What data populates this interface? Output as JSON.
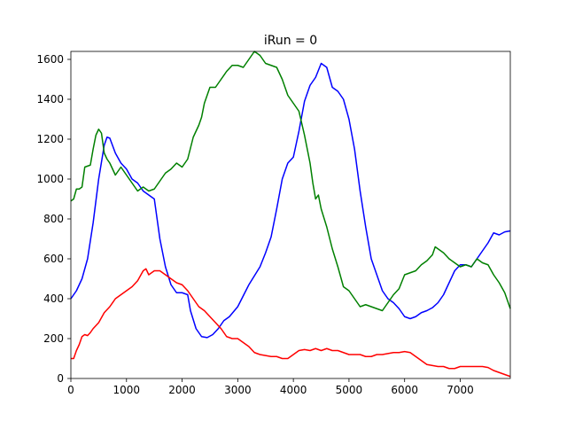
{
  "chart_data": {
    "type": "line",
    "title": "iRun = 0",
    "xlabel": "",
    "ylabel": "",
    "xlim": [
      0,
      7900
    ],
    "ylim": [
      0,
      1640
    ],
    "xticks": [
      0,
      1000,
      2000,
      3000,
      4000,
      5000,
      6000,
      7000
    ],
    "yticks": [
      0,
      200,
      400,
      600,
      800,
      1000,
      1200,
      1400,
      1600
    ],
    "grid": false,
    "legend": "none",
    "series": [
      {
        "color": "#0000ff",
        "points": [
          [
            0,
            400
          ],
          [
            100,
            440
          ],
          [
            200,
            500
          ],
          [
            300,
            600
          ],
          [
            400,
            780
          ],
          [
            500,
            1000
          ],
          [
            600,
            1170
          ],
          [
            650,
            1210
          ],
          [
            700,
            1205
          ],
          [
            800,
            1130
          ],
          [
            900,
            1080
          ],
          [
            1000,
            1050
          ],
          [
            1100,
            1000
          ],
          [
            1200,
            980
          ],
          [
            1300,
            940
          ],
          [
            1400,
            920
          ],
          [
            1500,
            900
          ],
          [
            1600,
            700
          ],
          [
            1700,
            560
          ],
          [
            1800,
            470
          ],
          [
            1900,
            430
          ],
          [
            2000,
            430
          ],
          [
            2100,
            420
          ],
          [
            2150,
            340
          ],
          [
            2250,
            250
          ],
          [
            2350,
            210
          ],
          [
            2450,
            205
          ],
          [
            2550,
            220
          ],
          [
            2650,
            250
          ],
          [
            2750,
            290
          ],
          [
            2850,
            310
          ],
          [
            3000,
            360
          ],
          [
            3200,
            470
          ],
          [
            3400,
            560
          ],
          [
            3500,
            630
          ],
          [
            3600,
            710
          ],
          [
            3700,
            850
          ],
          [
            3800,
            1000
          ],
          [
            3900,
            1080
          ],
          [
            4000,
            1110
          ],
          [
            4100,
            1240
          ],
          [
            4200,
            1390
          ],
          [
            4300,
            1470
          ],
          [
            4400,
            1510
          ],
          [
            4500,
            1580
          ],
          [
            4600,
            1560
          ],
          [
            4700,
            1460
          ],
          [
            4800,
            1440
          ],
          [
            4900,
            1400
          ],
          [
            5000,
            1300
          ],
          [
            5100,
            1150
          ],
          [
            5200,
            940
          ],
          [
            5300,
            760
          ],
          [
            5400,
            600
          ],
          [
            5500,
            520
          ],
          [
            5600,
            440
          ],
          [
            5700,
            400
          ],
          [
            5800,
            380
          ],
          [
            5900,
            350
          ],
          [
            6000,
            310
          ],
          [
            6100,
            300
          ],
          [
            6200,
            310
          ],
          [
            6300,
            330
          ],
          [
            6400,
            340
          ],
          [
            6500,
            355
          ],
          [
            6600,
            380
          ],
          [
            6700,
            420
          ],
          [
            6800,
            480
          ],
          [
            6900,
            540
          ],
          [
            7000,
            570
          ],
          [
            7100,
            570
          ],
          [
            7200,
            560
          ],
          [
            7300,
            600
          ],
          [
            7400,
            640
          ],
          [
            7500,
            680
          ],
          [
            7600,
            730
          ],
          [
            7700,
            720
          ],
          [
            7800,
            735
          ],
          [
            7900,
            740
          ]
        ]
      },
      {
        "color": "#008000",
        "points": [
          [
            0,
            890
          ],
          [
            50,
            900
          ],
          [
            100,
            950
          ],
          [
            150,
            950
          ],
          [
            200,
            960
          ],
          [
            250,
            1060
          ],
          [
            350,
            1070
          ],
          [
            400,
            1150
          ],
          [
            450,
            1220
          ],
          [
            500,
            1250
          ],
          [
            550,
            1230
          ],
          [
            600,
            1130
          ],
          [
            650,
            1100
          ],
          [
            700,
            1080
          ],
          [
            750,
            1050
          ],
          [
            800,
            1020
          ],
          [
            900,
            1060
          ],
          [
            1000,
            1020
          ],
          [
            1100,
            980
          ],
          [
            1150,
            960
          ],
          [
            1200,
            940
          ],
          [
            1300,
            960
          ],
          [
            1400,
            940
          ],
          [
            1500,
            950
          ],
          [
            1600,
            990
          ],
          [
            1700,
            1030
          ],
          [
            1800,
            1050
          ],
          [
            1900,
            1080
          ],
          [
            2000,
            1060
          ],
          [
            2100,
            1100
          ],
          [
            2200,
            1210
          ],
          [
            2300,
            1270
          ],
          [
            2350,
            1310
          ],
          [
            2400,
            1380
          ],
          [
            2500,
            1460
          ],
          [
            2600,
            1460
          ],
          [
            2700,
            1500
          ],
          [
            2800,
            1540
          ],
          [
            2900,
            1570
          ],
          [
            3000,
            1570
          ],
          [
            3100,
            1560
          ],
          [
            3200,
            1600
          ],
          [
            3300,
            1640
          ],
          [
            3400,
            1620
          ],
          [
            3500,
            1580
          ],
          [
            3600,
            1570
          ],
          [
            3700,
            1560
          ],
          [
            3800,
            1500
          ],
          [
            3900,
            1420
          ],
          [
            4000,
            1380
          ],
          [
            4100,
            1340
          ],
          [
            4200,
            1220
          ],
          [
            4300,
            1080
          ],
          [
            4350,
            980
          ],
          [
            4400,
            900
          ],
          [
            4450,
            920
          ],
          [
            4500,
            850
          ],
          [
            4600,
            760
          ],
          [
            4700,
            650
          ],
          [
            4800,
            560
          ],
          [
            4900,
            460
          ],
          [
            5000,
            440
          ],
          [
            5100,
            400
          ],
          [
            5200,
            360
          ],
          [
            5300,
            370
          ],
          [
            5400,
            360
          ],
          [
            5500,
            350
          ],
          [
            5600,
            340
          ],
          [
            5700,
            380
          ],
          [
            5800,
            420
          ],
          [
            5900,
            450
          ],
          [
            6000,
            520
          ],
          [
            6100,
            530
          ],
          [
            6200,
            540
          ],
          [
            6300,
            570
          ],
          [
            6400,
            590
          ],
          [
            6500,
            620
          ],
          [
            6550,
            660
          ],
          [
            6600,
            650
          ],
          [
            6700,
            630
          ],
          [
            6800,
            600
          ],
          [
            6900,
            580
          ],
          [
            7000,
            560
          ],
          [
            7100,
            570
          ],
          [
            7200,
            560
          ],
          [
            7300,
            600
          ],
          [
            7400,
            580
          ],
          [
            7500,
            570
          ],
          [
            7600,
            520
          ],
          [
            7700,
            480
          ],
          [
            7800,
            430
          ],
          [
            7900,
            350
          ]
        ]
      },
      {
        "color": "#ff0000",
        "points": [
          [
            0,
            100
          ],
          [
            50,
            100
          ],
          [
            100,
            140
          ],
          [
            150,
            170
          ],
          [
            200,
            210
          ],
          [
            250,
            220
          ],
          [
            300,
            215
          ],
          [
            350,
            230
          ],
          [
            400,
            250
          ],
          [
            500,
            280
          ],
          [
            600,
            330
          ],
          [
            700,
            360
          ],
          [
            800,
            400
          ],
          [
            900,
            420
          ],
          [
            1000,
            440
          ],
          [
            1100,
            460
          ],
          [
            1200,
            490
          ],
          [
            1300,
            540
          ],
          [
            1350,
            550
          ],
          [
            1400,
            520
          ],
          [
            1500,
            540
          ],
          [
            1600,
            540
          ],
          [
            1700,
            520
          ],
          [
            1800,
            500
          ],
          [
            1900,
            480
          ],
          [
            2000,
            470
          ],
          [
            2100,
            440
          ],
          [
            2200,
            400
          ],
          [
            2300,
            360
          ],
          [
            2400,
            340
          ],
          [
            2500,
            310
          ],
          [
            2600,
            280
          ],
          [
            2700,
            250
          ],
          [
            2800,
            210
          ],
          [
            2900,
            200
          ],
          [
            3000,
            200
          ],
          [
            3100,
            180
          ],
          [
            3200,
            160
          ],
          [
            3300,
            130
          ],
          [
            3400,
            120
          ],
          [
            3500,
            115
          ],
          [
            3600,
            110
          ],
          [
            3700,
            110
          ],
          [
            3800,
            100
          ],
          [
            3900,
            100
          ],
          [
            4000,
            120
          ],
          [
            4100,
            140
          ],
          [
            4200,
            145
          ],
          [
            4300,
            140
          ],
          [
            4400,
            150
          ],
          [
            4500,
            140
          ],
          [
            4600,
            150
          ],
          [
            4700,
            140
          ],
          [
            4800,
            140
          ],
          [
            4900,
            130
          ],
          [
            5000,
            120
          ],
          [
            5100,
            120
          ],
          [
            5200,
            120
          ],
          [
            5300,
            110
          ],
          [
            5400,
            110
          ],
          [
            5500,
            120
          ],
          [
            5600,
            120
          ],
          [
            5700,
            125
          ],
          [
            5800,
            130
          ],
          [
            5900,
            130
          ],
          [
            6000,
            135
          ],
          [
            6100,
            130
          ],
          [
            6200,
            110
          ],
          [
            6300,
            90
          ],
          [
            6400,
            70
          ],
          [
            6500,
            65
          ],
          [
            6600,
            60
          ],
          [
            6700,
            60
          ],
          [
            6800,
            50
          ],
          [
            6900,
            50
          ],
          [
            7000,
            60
          ],
          [
            7100,
            60
          ],
          [
            7200,
            60
          ],
          [
            7300,
            60
          ],
          [
            7400,
            60
          ],
          [
            7500,
            55
          ],
          [
            7600,
            40
          ],
          [
            7700,
            30
          ],
          [
            7800,
            20
          ],
          [
            7900,
            10
          ]
        ]
      }
    ]
  }
}
